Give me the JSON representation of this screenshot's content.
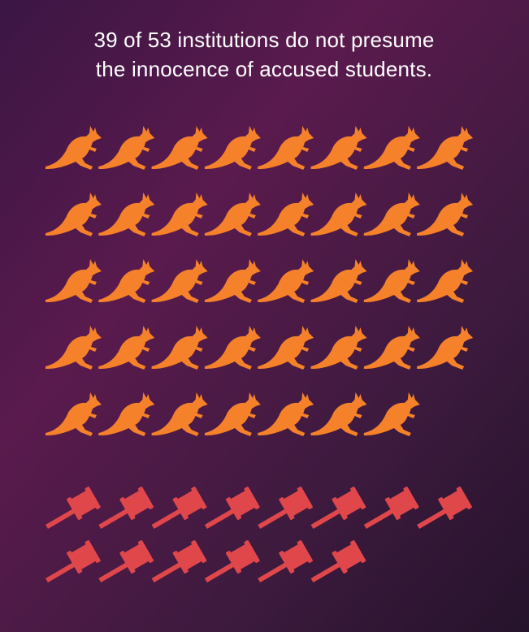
{
  "chart_data": {
    "type": "pictogram",
    "title": [
      "39 of 53 institutions do not presume",
      "the innocence of accused students."
    ],
    "values": [
      39,
      14
    ],
    "colors": [
      "#f5822a",
      "#e0474b"
    ]
  }
}
